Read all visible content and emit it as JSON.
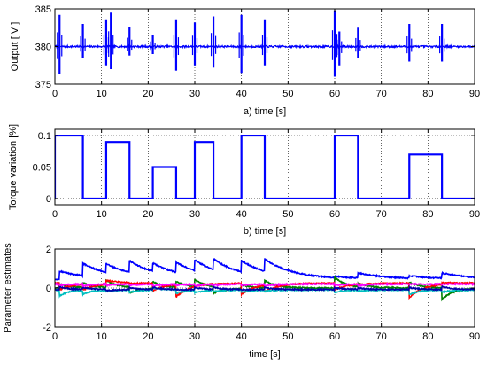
{
  "chart_data": [
    {
      "type": "line",
      "panel": "a",
      "xlabel": "a) time [s]",
      "ylabel": "Output [ V ]",
      "xlim": [
        0,
        90
      ],
      "ylim": [
        375,
        385
      ],
      "xticks": [
        0,
        10,
        20,
        30,
        40,
        50,
        60,
        70,
        80,
        90
      ],
      "yticks": [
        375,
        380,
        385
      ],
      "grid": true,
      "series": [
        {
          "color": "#0000ff",
          "baseline": 380,
          "disturbances": [
            {
              "t": 1,
              "min": 376.3,
              "max": 384.2
            },
            {
              "t": 6,
              "min": 378.5,
              "max": 383.0
            },
            {
              "t": 11,
              "min": 377.5,
              "max": 383.5
            },
            {
              "t": 12,
              "min": 377.0,
              "max": 384.5
            },
            {
              "t": 16,
              "min": 378.8,
              "max": 382.6
            },
            {
              "t": 21,
              "min": 379.0,
              "max": 381.5
            },
            {
              "t": 26,
              "min": 376.8,
              "max": 383.5
            },
            {
              "t": 30,
              "min": 377.5,
              "max": 383.2
            },
            {
              "t": 34,
              "min": 377.2,
              "max": 384.0
            },
            {
              "t": 40,
              "min": 376.5,
              "max": 384.2
            },
            {
              "t": 45,
              "min": 377.5,
              "max": 383.5
            },
            {
              "t": 60,
              "min": 376.0,
              "max": 384.8
            },
            {
              "t": 61,
              "min": 377.5,
              "max": 382.0
            },
            {
              "t": 65,
              "min": 378.5,
              "max": 382.5
            },
            {
              "t": 76,
              "min": 378.0,
              "max": 383.0
            },
            {
              "t": 83,
              "min": 378.0,
              "max": 383.0
            }
          ]
        }
      ]
    },
    {
      "type": "line",
      "panel": "b",
      "xlabel": "b) time [s]",
      "ylabel": "Torque variation [%]",
      "xlim": [
        0,
        90
      ],
      "ylim": [
        -0.01,
        0.11
      ],
      "xticks": [
        0,
        10,
        20,
        30,
        40,
        50,
        60,
        70,
        80,
        90
      ],
      "yticks": [
        0,
        0.05,
        0.1
      ],
      "grid": true,
      "series": [
        {
          "color": "#0000ff",
          "x": [
            0,
            0,
            6,
            6,
            11,
            11,
            16,
            16,
            21,
            21,
            26,
            26,
            30,
            30,
            34,
            34,
            40,
            40,
            45,
            45,
            60,
            60,
            65,
            65,
            76,
            76,
            83,
            83,
            90
          ],
          "y": [
            0,
            0.1,
            0.1,
            0,
            0,
            0.09,
            0.09,
            0,
            0,
            0.05,
            0.05,
            0,
            0,
            0.09,
            0.09,
            0,
            0,
            0.1,
            0.1,
            0,
            0,
            0.1,
            0.1,
            0,
            0,
            0.07,
            0.07,
            0,
            0
          ]
        }
      ]
    },
    {
      "type": "line",
      "panel": "c",
      "xlabel": "time [s]",
      "ylabel": "Parameter estimates",
      "xlim": [
        0,
        90
      ],
      "ylim": [
        -2,
        2
      ],
      "xticks": [
        0,
        10,
        20,
        30,
        40,
        50,
        60,
        70,
        80,
        90
      ],
      "yticks": [
        -2,
        0,
        2
      ],
      "grid": true,
      "events": [
        1,
        6,
        11,
        16,
        21,
        26,
        30,
        34,
        40,
        45,
        60,
        65,
        76,
        83
      ],
      "series": [
        {
          "color": "#0000ff",
          "base": 0.45,
          "jumps": [
            1.15,
            1.5,
            1.2,
            1.45,
            1.15,
            1.3,
            1.35,
            1.35,
            1.4,
            1.5,
            0.55,
            0.9,
            0.65,
            0.9
          ],
          "decay": 6
        },
        {
          "color": "#008000",
          "base": 0.0,
          "jumps": [
            0.35,
            0.4,
            0.6,
            -0.5,
            0.6,
            0.5,
            0.6,
            -0.6,
            0.3,
            0.6,
            0.9,
            0.3,
            0.5,
            -1.0
          ],
          "decay": 2.5
        },
        {
          "color": "#ff0000",
          "base": 0.25,
          "jumps": [
            -0.3,
            -0.2,
            0.6,
            0.2,
            -0.4,
            -0.8,
            0.3,
            0.2,
            -0.7,
            -0.3,
            -0.3,
            0.2,
            -1.0,
            0.4
          ],
          "decay": 3
        },
        {
          "color": "#00bfbf",
          "base": -0.1,
          "jumps": [
            -0.6,
            -0.4,
            -0.2,
            -0.3,
            0.1,
            -0.4,
            -0.3,
            -0.2,
            -0.3,
            -0.2,
            -0.3,
            -0.2,
            -0.5,
            -0.3
          ],
          "decay": 2
        },
        {
          "color": "#ff00ff",
          "base": 0.2,
          "jumps": [
            0.1,
            0.05,
            0.1,
            0.1,
            0.05,
            0.1,
            0.05,
            0.1,
            0.1,
            0.05,
            0.1,
            0.05,
            0.2,
            0.2
          ],
          "decay": 2
        },
        {
          "color": "#0000aa",
          "base": -0.08,
          "jumps": [
            0.15,
            0.1,
            -0.2,
            0.1,
            0.1,
            -0.1,
            0.1,
            0.1,
            -0.1,
            0.1,
            0.1,
            0.05,
            0.1,
            0.2
          ],
          "decay": 2
        }
      ]
    }
  ]
}
